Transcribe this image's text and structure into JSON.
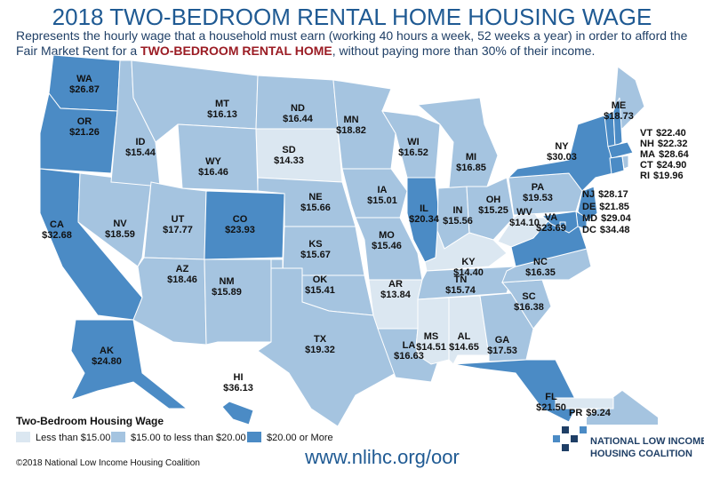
{
  "map": {
    "title": "2018 TWO-BEDROOM RENTAL HOME HOUSING WAGE",
    "subtitle": {
      "before": "Represents the hourly wage that a household must earn (working 40 hours a week, 52 weeks a year) in order to afford the Fair Market Rent for a",
      "emphasis": "TWO-BEDROOM RENTAL HOME",
      "after": ", without paying more than 30% of their income."
    },
    "states": [
      {
        "name": "WA",
        "value": 26.87,
        "label": "$26.87"
      },
      {
        "name": "OR",
        "value": 21.26,
        "label": "$21.26"
      },
      {
        "name": "CA",
        "value": 32.68,
        "label": "$32.68"
      },
      {
        "name": "NV",
        "value": 18.59,
        "label": "$18.59"
      },
      {
        "name": "ID",
        "value": 15.44,
        "label": "$15.44"
      },
      {
        "name": "MT",
        "value": 16.13,
        "label": "$16.13"
      },
      {
        "name": "WY",
        "value": 16.46,
        "label": "$16.46"
      },
      {
        "name": "UT",
        "value": 17.77,
        "label": "$17.77"
      },
      {
        "name": "CO",
        "value": 23.93,
        "label": "$23.93"
      },
      {
        "name": "AZ",
        "value": 18.46,
        "label": "$18.46"
      },
      {
        "name": "NM",
        "value": 15.89,
        "label": "$15.89"
      },
      {
        "name": "ND",
        "value": 16.44,
        "label": "$16.44"
      },
      {
        "name": "SD",
        "value": 14.33,
        "label": "$14.33"
      },
      {
        "name": "NE",
        "value": 15.66,
        "label": "$15.66"
      },
      {
        "name": "KS",
        "value": 15.67,
        "label": "$15.67"
      },
      {
        "name": "OK",
        "value": 15.41,
        "label": "$15.41"
      },
      {
        "name": "TX",
        "value": 19.32,
        "label": "$19.32"
      },
      {
        "name": "MN",
        "value": 18.82,
        "label": "$18.82"
      },
      {
        "name": "IA",
        "value": 15.01,
        "label": "$15.01"
      },
      {
        "name": "MO",
        "value": 15.46,
        "label": "$15.46"
      },
      {
        "name": "AR",
        "value": 13.84,
        "label": "$13.84"
      },
      {
        "name": "LA",
        "value": 16.63,
        "label": "$16.63"
      },
      {
        "name": "WI",
        "value": 16.52,
        "label": "$16.52"
      },
      {
        "name": "IL",
        "value": 20.34,
        "label": "$20.34"
      },
      {
        "name": "MI",
        "value": 16.85,
        "label": "$16.85"
      },
      {
        "name": "IN",
        "value": 15.56,
        "label": "$15.56"
      },
      {
        "name": "OH",
        "value": 15.25,
        "label": "$15.25"
      },
      {
        "name": "KY",
        "value": 14.4,
        "label": "$14.40"
      },
      {
        "name": "TN",
        "value": 15.74,
        "label": "$15.74"
      },
      {
        "name": "MS",
        "value": 14.51,
        "label": "$14.51"
      },
      {
        "name": "AL",
        "value": 14.65,
        "label": "$14.65"
      },
      {
        "name": "GA",
        "value": 17.53,
        "label": "$17.53"
      },
      {
        "name": "FL",
        "value": 21.5,
        "label": "$21.50"
      },
      {
        "name": "SC",
        "value": 16.38,
        "label": "$16.38"
      },
      {
        "name": "NC",
        "value": 16.35,
        "label": "$16.35"
      },
      {
        "name": "VA",
        "value": 23.69,
        "label": "$23.69"
      },
      {
        "name": "WV",
        "value": 14.1,
        "label": "$14.10"
      },
      {
        "name": "PA",
        "value": 19.53,
        "label": "$19.53"
      },
      {
        "name": "NY",
        "value": 30.03,
        "label": "$30.03"
      },
      {
        "name": "ME",
        "value": 18.73,
        "label": "$18.73"
      },
      {
        "name": "VT",
        "value": 22.4,
        "label": "$22.40"
      },
      {
        "name": "NH",
        "value": 22.32,
        "label": "$22.32"
      },
      {
        "name": "MA",
        "value": 28.64,
        "label": "$28.64"
      },
      {
        "name": "CT",
        "value": 24.9,
        "label": "$24.90"
      },
      {
        "name": "RI",
        "value": 19.96,
        "label": "$19.96"
      },
      {
        "name": "NJ",
        "value": 28.17,
        "label": "$28.17"
      },
      {
        "name": "DE",
        "value": 21.85,
        "label": "$21.85"
      },
      {
        "name": "MD",
        "value": 29.04,
        "label": "$29.04"
      },
      {
        "name": "DC",
        "value": 34.48,
        "label": "$34.48"
      },
      {
        "name": "AK",
        "value": 24.8,
        "label": "$24.80"
      },
      {
        "name": "HI",
        "value": 36.13,
        "label": "$36.13"
      },
      {
        "name": "PR",
        "value": 9.24,
        "label": "$9.24"
      }
    ],
    "legend": {
      "title": "Two-Bedroom Housing Wage",
      "breaks": [
        15,
        20
      ],
      "classes": [
        {
          "label": "Less than $15.00",
          "color": "#dbe7f1"
        },
        {
          "label": "$15.00 to less than $20.00",
          "color": "#a5c4e0"
        },
        {
          "label": "$20.00 or More",
          "color": "#4b8bc5"
        }
      ]
    },
    "copyright": "©2018 National Low Income Housing Coalition",
    "url": "www.nlihc.org/oor",
    "logo": [
      "NATIONAL LOW INCOME",
      "HOUSING COALITION"
    ]
  }
}
